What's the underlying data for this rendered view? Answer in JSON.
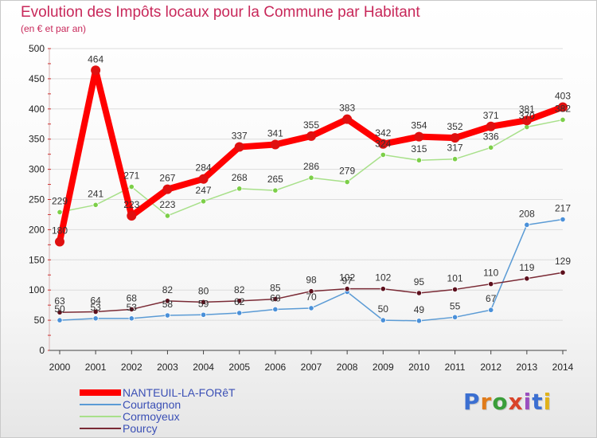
{
  "title": "Evolution des Impôts locaux pour la Commune par Habitant",
  "subtitle": "(en € et par an)",
  "logo_text": "Proxiti",
  "chart_data": {
    "type": "line",
    "title": "Evolution des Impôts locaux pour la Commune par Habitant",
    "subtitle": "(en € et par an)",
    "xlabel": "",
    "ylabel": "",
    "ylim": [
      0,
      500
    ],
    "yticks": [
      0,
      50,
      100,
      150,
      200,
      250,
      300,
      350,
      400,
      450,
      500
    ],
    "grid": true,
    "legend_position": "bottom-left",
    "x": [
      "2000",
      "2001",
      "2002",
      "2003",
      "2004",
      "2005",
      "2006",
      "2007",
      "2008",
      "2009",
      "2010",
      "2011",
      "2012",
      "2013",
      "2014"
    ],
    "series": [
      {
        "name": "NANTEUIL-LA-FORêT",
        "color": "#ff0000",
        "marker": "#e01010",
        "width": 8,
        "values": [
          180,
          464,
          223,
          267,
          284,
          337,
          341,
          355,
          383,
          342,
          354,
          352,
          371,
          381,
          403
        ]
      },
      {
        "name": "Courtagnon",
        "color": "#5b9bd5",
        "marker": "#4a90d9",
        "width": 1.5,
        "values": [
          50,
          53,
          53,
          58,
          59,
          62,
          68,
          70,
          97,
          50,
          49,
          55,
          67,
          208,
          217
        ]
      },
      {
        "name": "Cormoyeux",
        "color": "#a8e08a",
        "marker": "#7ccf48",
        "width": 1.5,
        "values": [
          229,
          241,
          271,
          223,
          247,
          268,
          265,
          286,
          279,
          324,
          315,
          317,
          336,
          370,
          382
        ]
      },
      {
        "name": "Pourcy",
        "color": "#7a2a35",
        "marker": "#5c0f1c",
        "width": 1.5,
        "values": [
          63,
          64,
          68,
          82,
          80,
          82,
          85,
          98,
          102,
          102,
          95,
          101,
          110,
          119,
          129
        ]
      }
    ]
  }
}
